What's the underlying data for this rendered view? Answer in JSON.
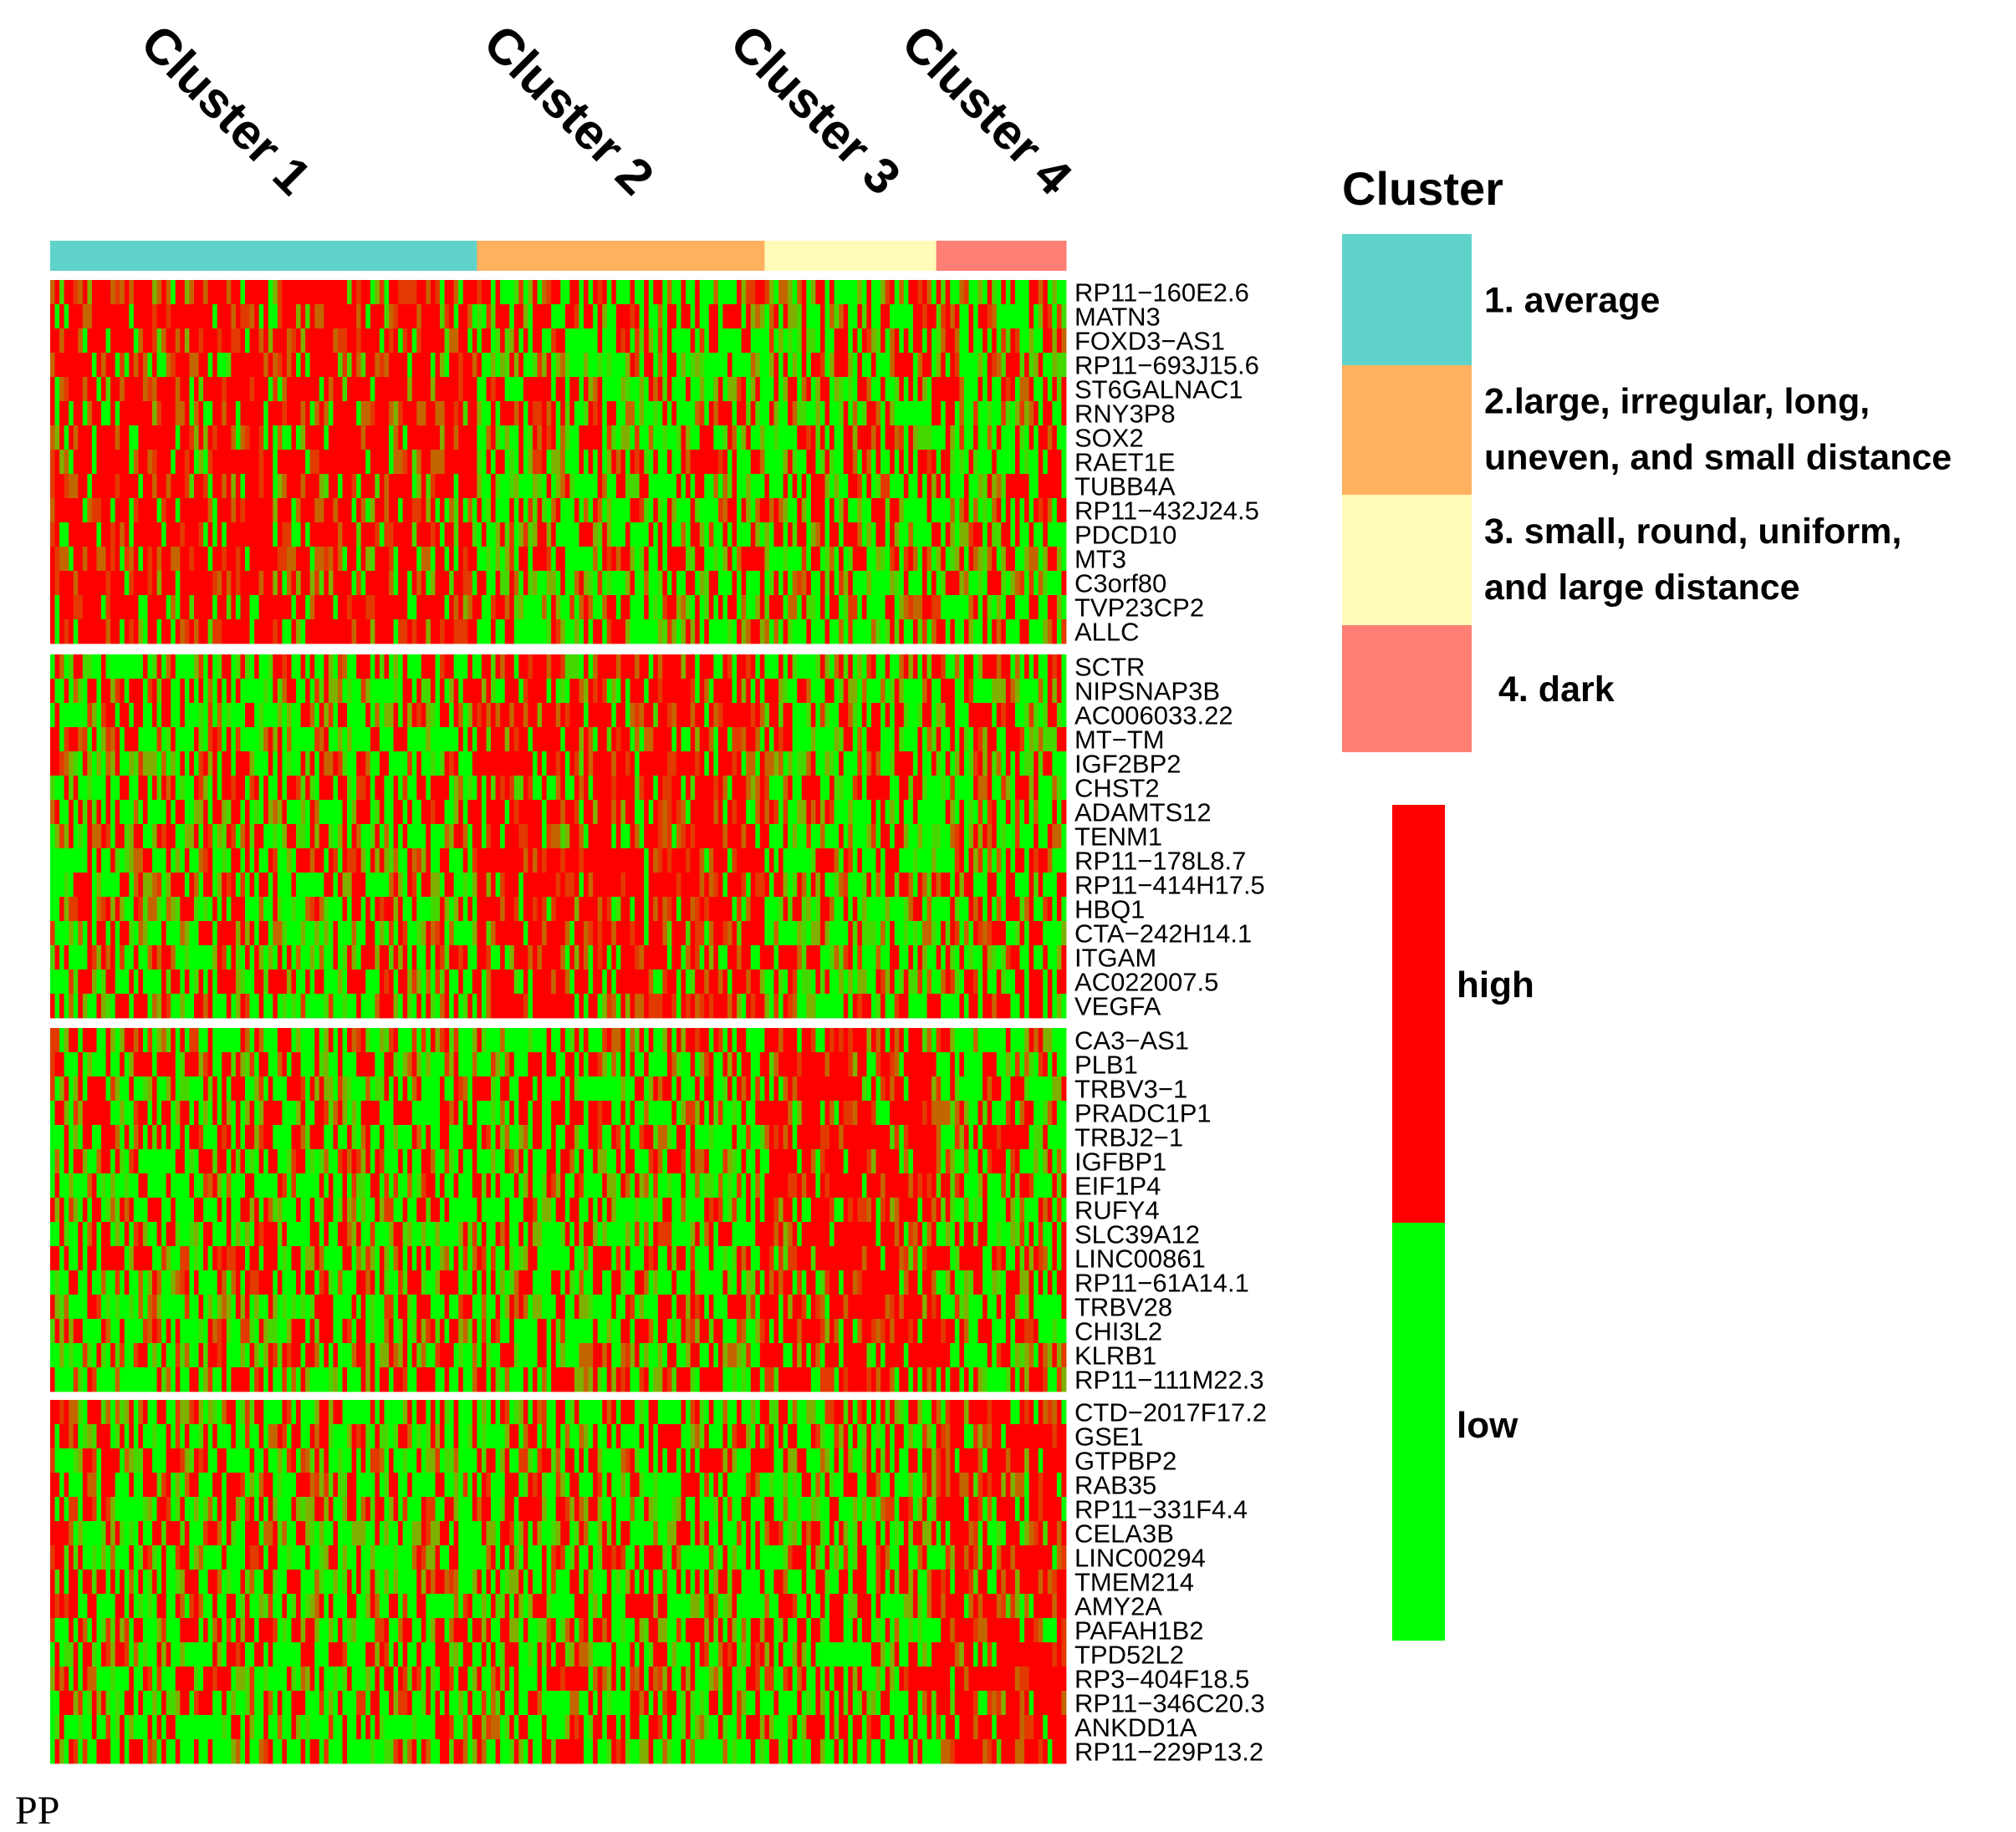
{
  "chart_data": {
    "type": "heatmap",
    "title": "",
    "column_clusters": [
      {
        "label": "Cluster 1",
        "samples": 92,
        "color": "#5fd3c9",
        "legend": "1. average"
      },
      {
        "label": "Cluster 2",
        "samples": 62,
        "color": "#ffb15f",
        "legend_lines": [
          "2.large, irregular, long,",
          "uneven, and small distance"
        ]
      },
      {
        "label": "Cluster 3",
        "samples": 37,
        "color": "#fffbb8",
        "legend_lines": [
          "3. small, round, uniform,",
          "and large distance"
        ]
      },
      {
        "label": "Cluster 4",
        "samples": 28,
        "color": "#ff7f75",
        "legend": "4. dark"
      }
    ],
    "gene_blocks": [
      {
        "high_in": "Cluster 1",
        "genes": [
          "RP11−160E2.6",
          "MATN3",
          "FOXD3−AS1",
          "RP11−693J15.6",
          "ST6GALNAC1",
          "RNY3P8",
          "SOX2",
          "RAET1E",
          "TUBB4A",
          "RP11−432J24.5",
          "PDCD10",
          "MT3",
          "C3orf80",
          "TVP23CP2",
          "ALLC"
        ]
      },
      {
        "high_in": "Cluster 2",
        "genes": [
          "SCTR",
          "NIPSNAP3B",
          "AC006033.22",
          "MT−TM",
          "IGF2BP2",
          "CHST2",
          "ADAMTS12",
          "TENM1",
          "RP11−178L8.7",
          "RP11−414H17.5",
          "HBQ1",
          "CTA−242H14.1",
          "ITGAM",
          "AC022007.5",
          "VEGFA"
        ]
      },
      {
        "high_in": "Cluster 3",
        "genes": [
          "CA3−AS1",
          "PLB1",
          "TRBV3−1",
          "PRADC1P1",
          "TRBJ2−1",
          "IGFBP1",
          "EIF1P4",
          "RUFY4",
          "SLC39A12",
          "LINC00861",
          "RP11−61A14.1",
          "TRBV28",
          "CHI3L2",
          "KLRB1",
          "RP11−111M22.3"
        ]
      },
      {
        "high_in": "Cluster 4",
        "genes": [
          "CTD−2017F17.2",
          "GSE1",
          "GTPBP2",
          "RAB35",
          "RP11−331F4.4",
          "CELA3B",
          "LINC00294",
          "TMEM214",
          "AMY2A",
          "PAFAH1B2",
          "TPD52L2",
          "RP3−404F18.5",
          "RP11−346C20.3",
          "ANKDD1A",
          "RP11−229P13.2"
        ]
      }
    ],
    "color_scale": {
      "high_label": "high",
      "low_label": "low",
      "high_color": "#ff0000",
      "low_color": "#00ff00"
    }
  },
  "legend": {
    "title": "Cluster"
  },
  "footer": {
    "text": "PP"
  }
}
